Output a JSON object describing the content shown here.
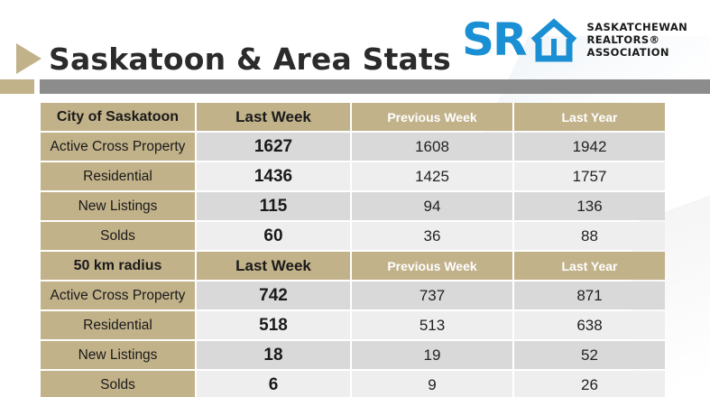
{
  "title": "Saskatoon & Area Stats",
  "logo": {
    "mark": "SR",
    "line1": "SASKATCHEWAN",
    "line2": "REALTORS®",
    "line3": "ASSOCIATION",
    "color": "#1a8fd4"
  },
  "colors": {
    "accent": "#c2b28a",
    "bar": "#8c8c8c",
    "row_dark": "#d9d9d9",
    "row_light": "#eeeeee"
  },
  "sections": [
    {
      "header": {
        "label": "City of Saskatoon",
        "last_week": "Last Week",
        "previous_week": "Previous Week",
        "last_year": "Last Year"
      },
      "rows": [
        {
          "label": "Active Cross Property",
          "last_week": "1627",
          "previous_week": "1608",
          "last_year": "1942"
        },
        {
          "label": "Residential",
          "last_week": "1436",
          "previous_week": "1425",
          "last_year": "1757"
        },
        {
          "label": "New Listings",
          "last_week": "115",
          "previous_week": "94",
          "last_year": "136"
        },
        {
          "label": "Solds",
          "last_week": "60",
          "previous_week": "36",
          "last_year": "88"
        }
      ]
    },
    {
      "header": {
        "label": "50 km radius",
        "last_week": "Last Week",
        "previous_week": "Previous Week",
        "last_year": "Last Year"
      },
      "rows": [
        {
          "label": "Active Cross Property",
          "last_week": "742",
          "previous_week": "737",
          "last_year": "871"
        },
        {
          "label": "Residential",
          "last_week": "518",
          "previous_week": "513",
          "last_year": "638"
        },
        {
          "label": "New Listings",
          "last_week": "18",
          "previous_week": "19",
          "last_year": "52"
        },
        {
          "label": "Solds",
          "last_week": "6",
          "previous_week": "9",
          "last_year": "26"
        }
      ]
    }
  ]
}
